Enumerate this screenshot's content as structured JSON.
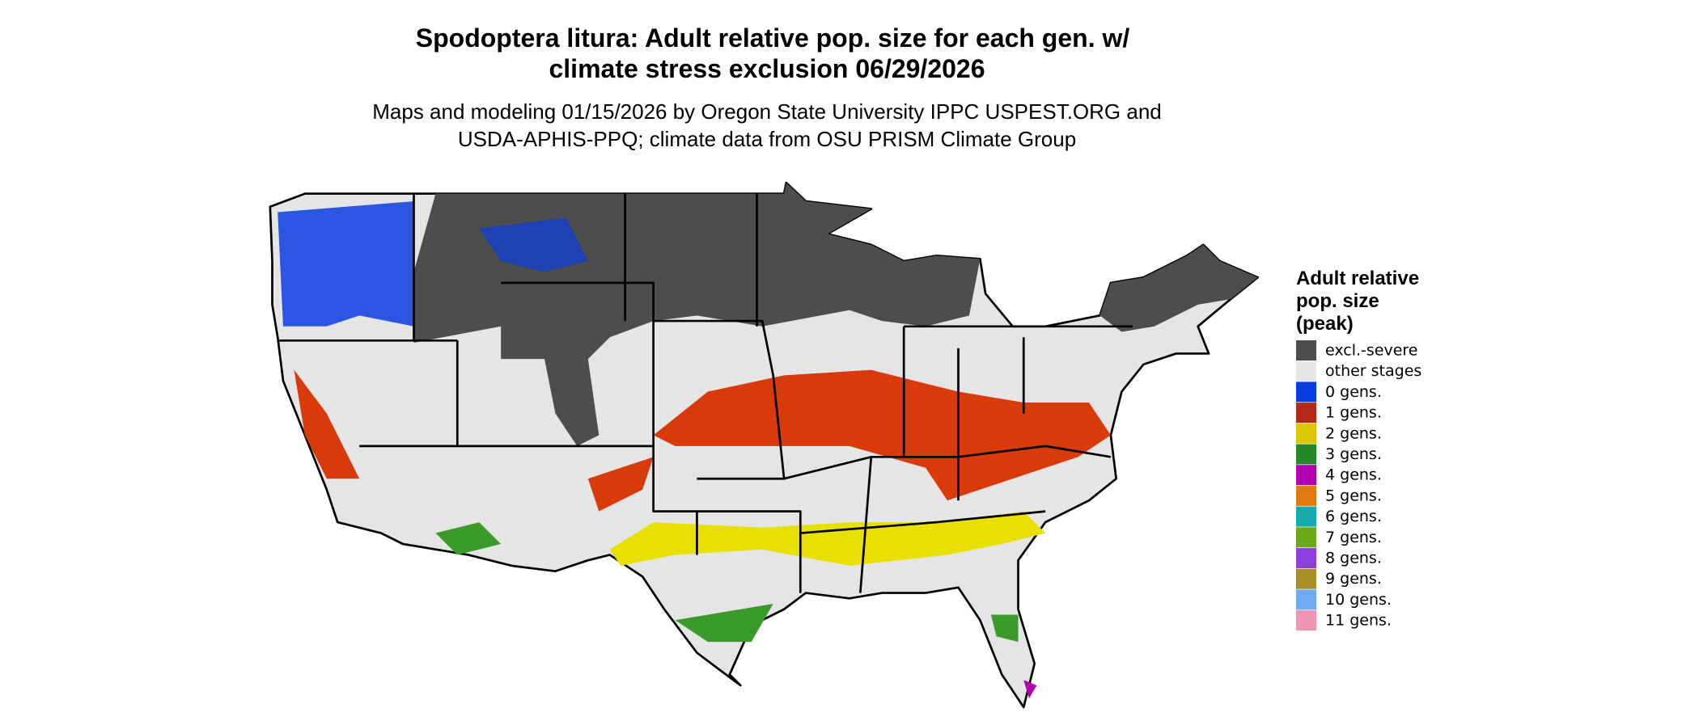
{
  "title": [
    "Spodoptera litura: Adult relative pop. size for each gen. w/",
    "climate stress exclusion 06/29/2026"
  ],
  "subtitle": [
    "Maps and modeling 01/15/2026 by Oregon State University IPPC USPEST.ORG and",
    "USDA-APHIS-PPQ; climate data from OSU PRISM Climate Group"
  ],
  "legend": {
    "title": [
      "Adult relative",
      "pop. size",
      "(peak)"
    ],
    "items": [
      {
        "label": "excl.-severe",
        "color": "#4d4d4d"
      },
      {
        "label": "other stages",
        "color": "#e6e6e6"
      },
      {
        "label": "0 gens.",
        "color": "#0a3de0"
      },
      {
        "label": "1 gens.",
        "color": "#b22a17"
      },
      {
        "label": "2 gens.",
        "color": "#dcc800"
      },
      {
        "label": "3 gens.",
        "color": "#238a2a"
      },
      {
        "label": "4 gens.",
        "color": "#b000b0"
      },
      {
        "label": "5 gens.",
        "color": "#e07a10"
      },
      {
        "label": "6 gens.",
        "color": "#16aaaa"
      },
      {
        "label": "7 gens.",
        "color": "#6aaa18"
      },
      {
        "label": "8 gens.",
        "color": "#8e3fdc"
      },
      {
        "label": "9 gens.",
        "color": "#a88e28"
      },
      {
        "label": "10 gens.",
        "color": "#6eaaf0"
      },
      {
        "label": "11 gens.",
        "color": "#f096b4"
      }
    ]
  }
}
